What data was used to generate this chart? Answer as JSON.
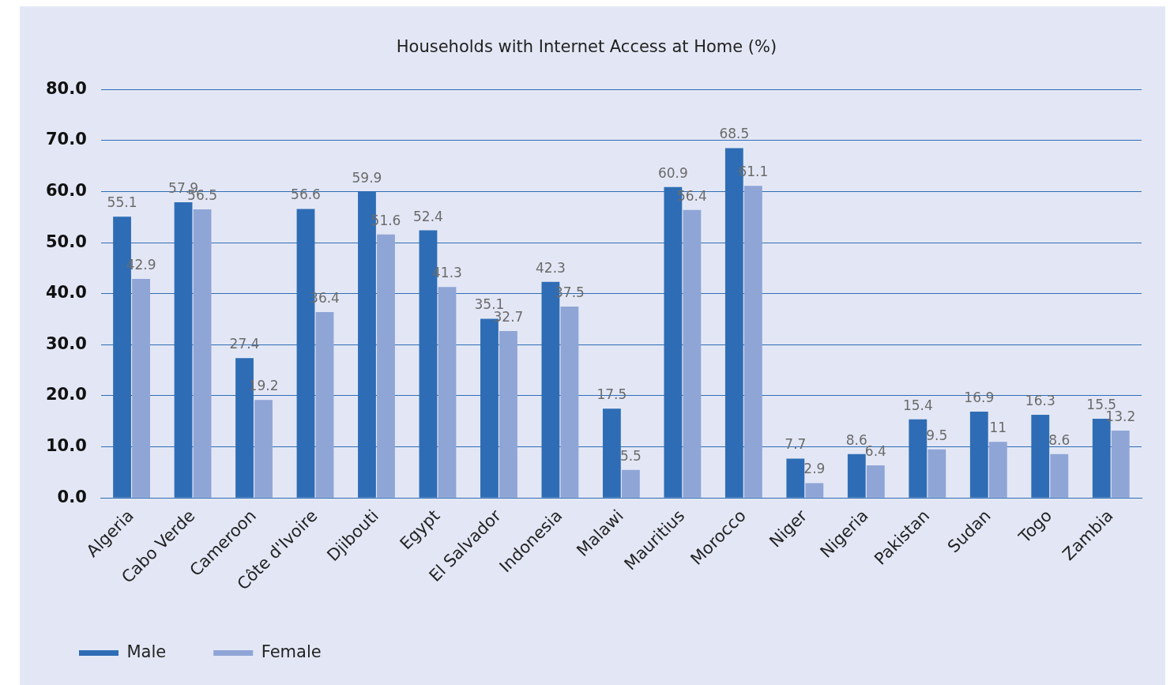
{
  "chart_data": {
    "type": "bar",
    "title": "Households with Internet Access at Home (%)",
    "categories": [
      "Algeria",
      "Cabo Verde",
      "Cameroon",
      "Côte d'Ivoire",
      "Djibouti",
      "Egypt",
      "El Salvador",
      "Indonesia",
      "Malawi",
      "Mauritius",
      "Morocco",
      "Niger",
      "Nigeria",
      "Pakistan",
      "Sudan",
      "Togo",
      "Zambia"
    ],
    "series": [
      {
        "name": "Male",
        "color": "#2e6db5",
        "values": [
          55.1,
          57.9,
          27.4,
          56.6,
          59.9,
          52.4,
          35.1,
          42.3,
          17.5,
          60.9,
          68.5,
          7.7,
          8.6,
          15.4,
          16.9,
          16.3,
          15.5
        ]
      },
      {
        "name": "Female",
        "color": "#8fa5d6",
        "values": [
          42.9,
          56.5,
          19.2,
          36.4,
          51.6,
          41.3,
          32.7,
          37.5,
          5.5,
          56.4,
          61.1,
          2.9,
          6.4,
          9.5,
          11,
          8.6,
          13.2
        ]
      }
    ],
    "ylim": [
      0,
      80
    ],
    "yticks": [
      {
        "value": 0,
        "label": "0.0"
      },
      {
        "value": 10,
        "label": "10.0"
      },
      {
        "value": 20,
        "label": "20.0"
      },
      {
        "value": 30,
        "label": "30.0"
      },
      {
        "value": 40,
        "label": "40.0"
      },
      {
        "value": 50,
        "label": "50.0"
      },
      {
        "value": 60,
        "label": "60.0"
      },
      {
        "value": 70,
        "label": "70.0"
      },
      {
        "value": 80,
        "label": "80.0"
      }
    ],
    "grid": "y",
    "legend": "bottom left",
    "data_labels": true
  }
}
